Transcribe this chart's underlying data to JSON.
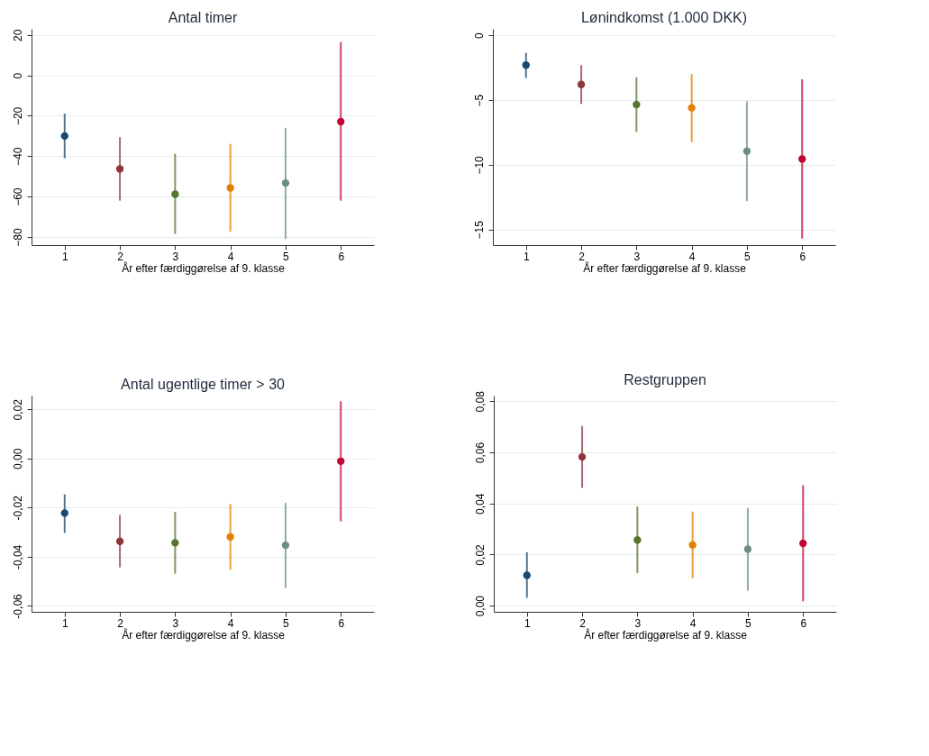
{
  "chart_data": [
    {
      "type": "scatter",
      "title": "Antal timer",
      "xlabel": "År efter færdiggørelse af 9. klasse",
      "categories": [
        "1",
        "2",
        "3",
        "4",
        "5",
        "6"
      ],
      "values": [
        -30,
        -46.3,
        -58.8,
        -55.7,
        -53.3,
        -22.9
      ],
      "errors": [
        [
          -41,
          -19
        ],
        [
          -62,
          -30.6
        ],
        [
          -78.4,
          -38.8
        ],
        [
          -77.4,
          -33.9
        ],
        [
          -81,
          -26
        ],
        [
          -62,
          16.5
        ]
      ],
      "colors": [
        "#1a476f",
        "#90353b",
        "#55752f",
        "#e37e00",
        "#6e8e84",
        "#c10534"
      ],
      "ylim": [
        -84,
        23
      ],
      "yticks": [
        -80,
        -60,
        -40,
        -20,
        0,
        20
      ],
      "grid": "y",
      "marker": "circle"
    },
    {
      "type": "scatter",
      "title": "Lønindkomst (1.000 DKK)",
      "xlabel": "År efter færdiggørelse af 9. klasse",
      "categories": [
        "1",
        "2",
        "3",
        "4",
        "5",
        "6"
      ],
      "values": [
        -2.3,
        -3.8,
        -5.35,
        -5.6,
        -8.95,
        -9.55
      ],
      "errors": [
        [
          -3.3,
          -1.35
        ],
        [
          -5.3,
          -2.3
        ],
        [
          -7.45,
          -3.25
        ],
        [
          -8.25,
          -3.0
        ],
        [
          -12.8,
          -5.1
        ],
        [
          -15.7,
          -3.4
        ]
      ],
      "colors": [
        "#1a476f",
        "#90353b",
        "#55752f",
        "#e37e00",
        "#6e8e84",
        "#c10534"
      ],
      "ylim": [
        -16.2,
        0.5
      ],
      "yticks": [
        -15,
        -10,
        -5,
        0
      ],
      "grid": "y",
      "marker": "circle"
    },
    {
      "type": "scatter",
      "title": "Antal ugentlige timer > 30",
      "xlabel": "År efter færdiggørelse af 9. klasse",
      "categories": [
        "1",
        "2",
        "3",
        "4",
        "5",
        "6"
      ],
      "values": [
        -0.0222,
        -0.0337,
        -0.0343,
        -0.0319,
        -0.0353,
        -0.0011
      ],
      "errors": [
        [
          -0.0303,
          -0.0146
        ],
        [
          -0.0443,
          -0.023
        ],
        [
          -0.0469,
          -0.0217
        ],
        [
          -0.0453,
          -0.0185
        ],
        [
          -0.0528,
          -0.0181
        ],
        [
          -0.0256,
          0.0233
        ]
      ],
      "colors": [
        "#1a476f",
        "#90353b",
        "#55752f",
        "#e37e00",
        "#6e8e84",
        "#c10534"
      ],
      "ylim": [
        -0.0624,
        0.0256
      ],
      "yticks": [
        {
          "value": -0.06,
          "label": "-0,06"
        },
        {
          "value": -0.04,
          "label": "-0,04"
        },
        {
          "value": -0.02,
          "label": "-0,02"
        },
        {
          "value": 0,
          "label": "0,00"
        },
        {
          "value": 0.02,
          "label": "0,02"
        }
      ],
      "grid": "y",
      "marker": "circle"
    },
    {
      "type": "scatter",
      "title": "Restgruppen",
      "xlabel": "År efter færdiggørelse af 9. klasse",
      "categories": [
        "1",
        "2",
        "3",
        "4",
        "5",
        "6"
      ],
      "values": [
        0.0119,
        0.0582,
        0.0257,
        0.0238,
        0.0221,
        0.0244
      ],
      "errors": [
        [
          0.0031,
          0.0209
        ],
        [
          0.0461,
          0.0703
        ],
        [
          0.0128,
          0.0388
        ],
        [
          0.0108,
          0.0368
        ],
        [
          0.0059,
          0.0382
        ],
        [
          0.0017,
          0.0471
        ]
      ],
      "colors": [
        "#1a476f",
        "#90353b",
        "#55752f",
        "#e37e00",
        "#6e8e84",
        "#c10534"
      ],
      "ylim": [
        -0.0024,
        0.0822
      ],
      "yticks": [
        {
          "value": 0,
          "label": "0,00"
        },
        {
          "value": 0.02,
          "label": "0,02"
        },
        {
          "value": 0.04,
          "label": "0,04"
        },
        {
          "value": 0.06,
          "label": "0,06"
        },
        {
          "value": 0.08,
          "label": "0,08"
        }
      ],
      "grid": "y",
      "marker": "circle"
    }
  ]
}
